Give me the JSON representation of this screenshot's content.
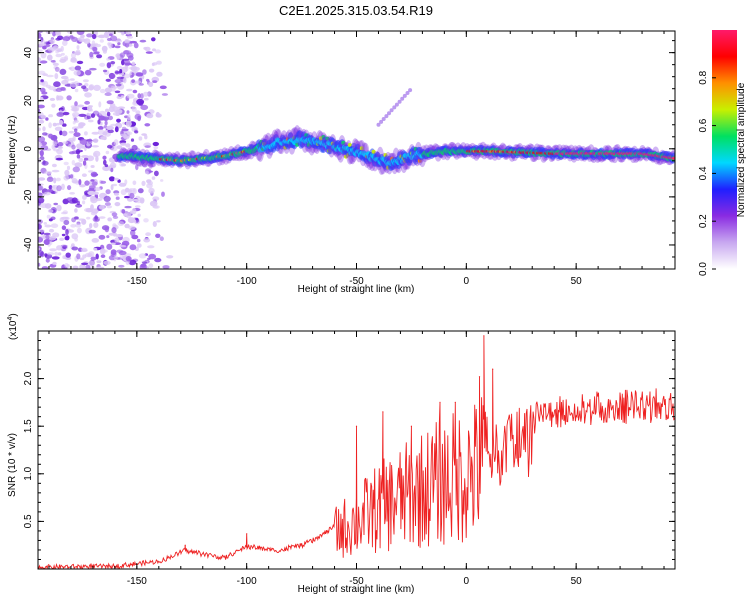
{
  "title": "C2E1.2025.315.03.54.R19",
  "chart_data": [
    {
      "type": "heatmap",
      "name": "spectrogram",
      "xlabel": "Height of straight line (km)",
      "ylabel": "Frequency (Hz)",
      "xlim": [
        -195,
        95
      ],
      "ylim": [
        -50,
        49
      ],
      "xticks": [
        -150,
        -100,
        -50,
        0,
        50
      ],
      "xtick_labels": [
        "-150",
        "-100",
        "-50",
        "0",
        "50"
      ],
      "yticks": [
        -40,
        -20,
        0,
        20,
        40
      ],
      "ytick_labels": [
        "-40",
        "-20",
        "0",
        "20",
        "40"
      ],
      "colorbar": {
        "label": "Normalized spectral amplitude",
        "range": [
          0,
          1
        ],
        "ticks": [
          0.0,
          0.2,
          0.4,
          0.6,
          0.8
        ],
        "tick_labels": [
          "0.0",
          "0.2",
          "0.4",
          "0.6",
          "0.8"
        ],
        "colors": [
          "#ffffff",
          "#c8a8f0",
          "#8a2be2",
          "#1f1fff",
          "#00d8ff",
          "#00e060",
          "#c8f000",
          "#ff9000",
          "#ff0000",
          "#ff1a6a"
        ]
      },
      "noise_region_x": [
        -195,
        -140
      ],
      "signal_centerline": [
        {
          "x": -155,
          "y": -3
        },
        {
          "x": -130,
          "y": -5
        },
        {
          "x": -110,
          "y": -3
        },
        {
          "x": -95,
          "y": 0
        },
        {
          "x": -85,
          "y": 3
        },
        {
          "x": -75,
          "y": 4
        },
        {
          "x": -60,
          "y": 1
        },
        {
          "x": -45,
          "y": -3
        },
        {
          "x": -35,
          "y": -6
        },
        {
          "x": -25,
          "y": -3
        },
        {
          "x": -10,
          "y": -1
        },
        {
          "x": 10,
          "y": -1
        },
        {
          "x": 40,
          "y": -2
        },
        {
          "x": 80,
          "y": -2
        },
        {
          "x": 95,
          "y": -4
        }
      ]
    },
    {
      "type": "line",
      "name": "snr",
      "xlabel": "Height of straight line (km)",
      "ylabel": "SNR (10 * v/v)",
      "y_multiplier": "(x10",
      "y_multiplier_exp": "4",
      "y_multiplier_close": ")",
      "xlim": [
        -195,
        95
      ],
      "ylim": [
        0,
        2.5
      ],
      "xticks": [
        -150,
        -100,
        -50,
        0,
        50
      ],
      "xtick_labels": [
        "-150",
        "-100",
        "-50",
        "0",
        "50"
      ],
      "yticks": [
        0.5,
        1.0,
        1.5,
        2.0
      ],
      "ytick_labels": [
        "0.5",
        "1.0",
        "1.5",
        "2.0"
      ],
      "line_color": "#ee2222",
      "envelope": [
        {
          "x": -195,
          "y": 0.02
        },
        {
          "x": -160,
          "y": 0.03
        },
        {
          "x": -140,
          "y": 0.08
        },
        {
          "x": -128,
          "y": 0.2
        },
        {
          "x": -110,
          "y": 0.12
        },
        {
          "x": -100,
          "y": 0.25
        },
        {
          "x": -85,
          "y": 0.2
        },
        {
          "x": -70,
          "y": 0.3
        },
        {
          "x": -55,
          "y": 0.55
        },
        {
          "x": -40,
          "y": 0.8
        },
        {
          "x": -20,
          "y": 1.05
        },
        {
          "x": -5,
          "y": 1.2
        },
        {
          "x": 5,
          "y": 1.3
        },
        {
          "x": 10,
          "y": 1.5
        },
        {
          "x": 20,
          "y": 1.65
        },
        {
          "x": 35,
          "y": 1.78
        },
        {
          "x": 60,
          "y": 1.85
        },
        {
          "x": 95,
          "y": 1.9
        }
      ],
      "spikes": [
        {
          "x": -128,
          "y": 0.25
        },
        {
          "x": -100,
          "y": 0.37
        },
        {
          "x": -50,
          "y": 1.5
        },
        {
          "x": -38,
          "y": 1.65
        },
        {
          "x": -25,
          "y": 1.5
        },
        {
          "x": -12,
          "y": 1.75
        },
        {
          "x": -5,
          "y": 1.75
        },
        {
          "x": 6,
          "y": 2.02
        },
        {
          "x": 8,
          "y": 2.45
        },
        {
          "x": 12,
          "y": 2.1
        }
      ]
    }
  ]
}
